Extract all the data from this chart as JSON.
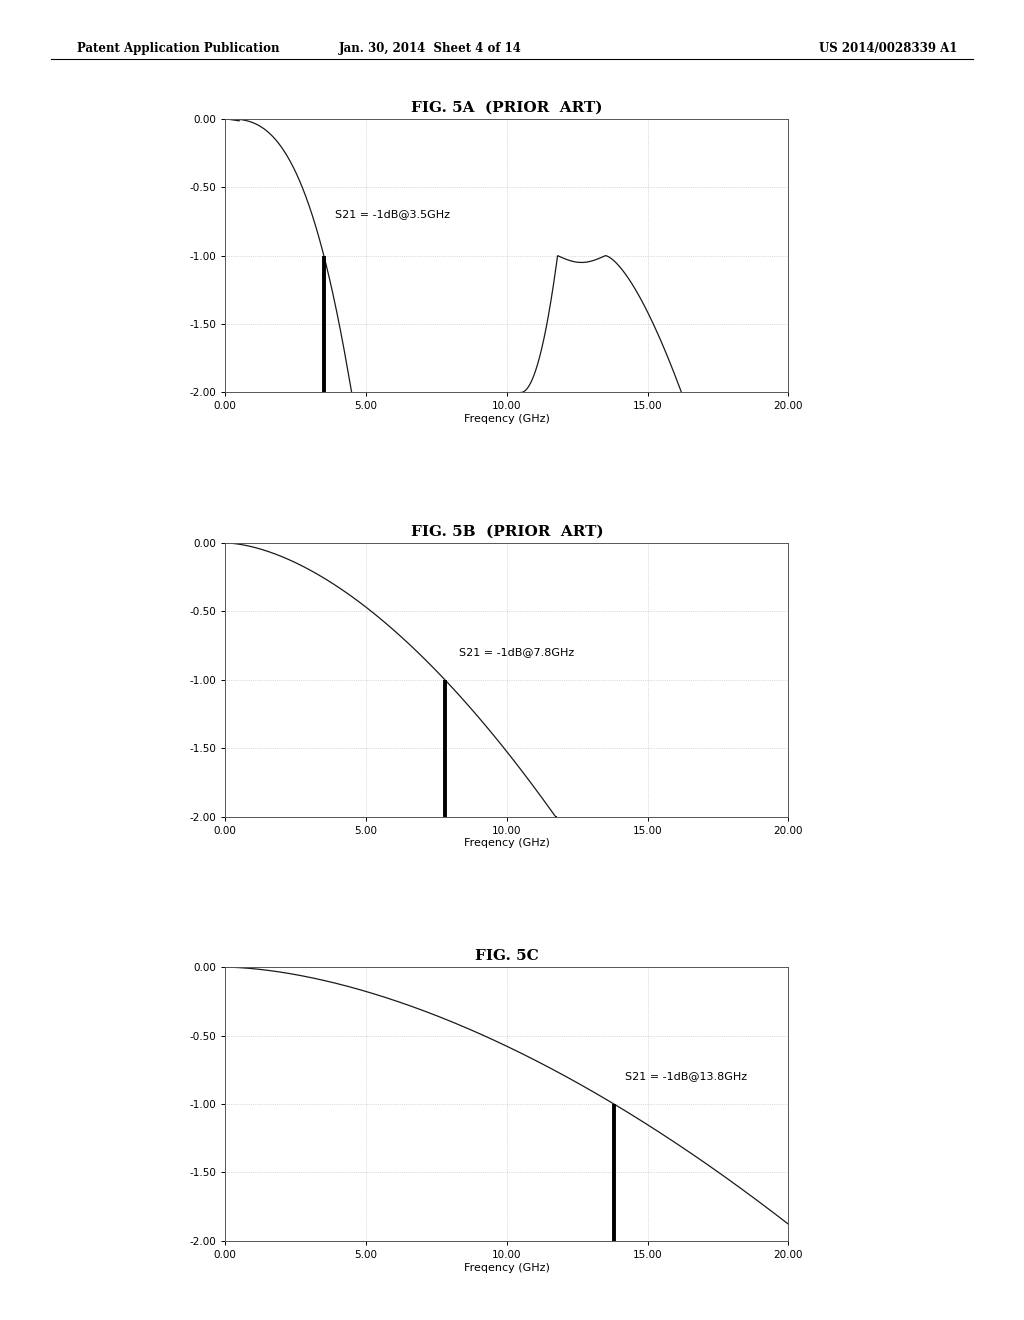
{
  "header_left": "Patent Application Publication",
  "header_mid": "Jan. 30, 2014  Sheet 4 of 14",
  "header_right": "US 2014/0028339 A1",
  "fig_titles": [
    "FIG. 5A  (PRIOR  ART)",
    "FIG. 5B  (PRIOR  ART)",
    "FIG. 5C"
  ],
  "xlabel": "Freqency (GHz)",
  "xlim": [
    0.0,
    20.0
  ],
  "xticks": [
    0.0,
    5.0,
    10.0,
    15.0,
    20.0
  ],
  "ylim": [
    -2.0,
    0.0
  ],
  "yticks": [
    0.0,
    -0.5,
    -1.0,
    -1.5,
    -2.0
  ],
  "annotations": [
    "S21 = -1dB@3.5GHz",
    "S21 = -1dB@7.8GHz",
    "S21 = -1dB@13.8GHz"
  ],
  "vline_x": [
    3.5,
    7.8,
    13.8
  ],
  "bg_color": "#ffffff",
  "line_color": "#1a1a1a",
  "grid_color": "#bbbbbb"
}
